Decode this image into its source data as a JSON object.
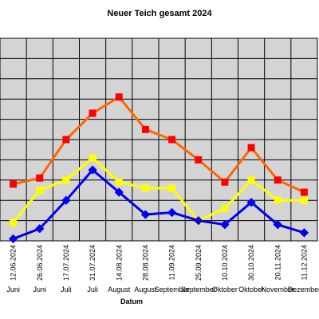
{
  "chart_data": {
    "type": "line",
    "title": "Neuer Teich gesamt 2024",
    "xlabel": "Datum",
    "ylabel": "",
    "ylim": [
      0,
      10
    ],
    "grid": true,
    "legend": "none",
    "categories": [
      "12.06.2024",
      "26.06.2024",
      "17.07.2024",
      "31.07.2024",
      "14.08.2024",
      "28.08.2024",
      "11.09.2024",
      "25.09.2024",
      "10.10.2024",
      "30.10.2024",
      "20.11.2024",
      "11.12.2024"
    ],
    "months": [
      "Juni",
      "Juni",
      "Juli",
      "Juli",
      "August",
      "August",
      "September",
      "September",
      "Oktober",
      "Oktober",
      "November",
      "Dezember"
    ],
    "series": [
      {
        "color": "#ff6600",
        "marker_color": "#ff0000",
        "values": [
          2.8,
          3.1,
          5.0,
          6.3,
          7.1,
          5.5,
          5.0,
          4.0,
          2.9,
          4.6,
          3.0,
          2.4
        ]
      },
      {
        "color": "#ffff00",
        "marker_color": "#ffff00",
        "values": [
          0.9,
          2.5,
          3.0,
          4.1,
          2.9,
          2.6,
          2.6,
          1.0,
          1.6,
          3.0,
          2.0,
          2.0
        ]
      },
      {
        "color": "#0000ee",
        "marker_color": "#0000ee",
        "values": [
          0.1,
          0.6,
          2.0,
          3.5,
          2.4,
          1.3,
          1.4,
          1.0,
          0.8,
          1.9,
          0.8,
          0.4
        ]
      }
    ]
  }
}
